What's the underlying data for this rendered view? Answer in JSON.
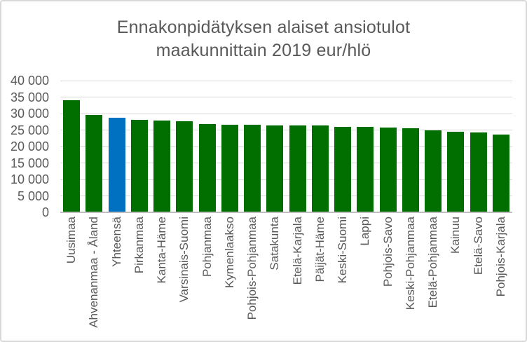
{
  "chart_data": {
    "type": "bar",
    "title": "Ennakonpidätyksen alaiset ansiotulot maakunnittain 2019 eur/hlö",
    "title_lines": [
      "Ennakonpidätyksen alaiset ansiotulot",
      "maakunnittain 2019 eur/hlö"
    ],
    "categories": [
      "Uusimaa",
      "Ahvenanmaa - Åland",
      "Yhteensä",
      "Pirkanmaa",
      "Kanta-Häme",
      "Varsinais-Suomi",
      "Pohjanmaa",
      "Kymenlaakso",
      "Pohjois-Pohjanmaa",
      "Satakunta",
      "Etelä-Karjala",
      "Päijät-Häme",
      "Keski-Suomi",
      "Lappi",
      "Pohjois-Savo",
      "Keski-Pohjanmaa",
      "Etelä-Pohjanmaa",
      "Kainuu",
      "Etelä-Savo",
      "Pohjois-Karjala"
    ],
    "values": [
      34100,
      29500,
      28800,
      28000,
      27800,
      27600,
      26900,
      26700,
      26600,
      26400,
      26300,
      26300,
      25900,
      25900,
      25800,
      25600,
      24800,
      24500,
      24200,
      23700
    ],
    "highlight_category": "Yhteensä",
    "ylim": [
      0,
      40000
    ],
    "ytick_step": 5000,
    "ytick_labels": [
      "0",
      "5 000",
      "10 000",
      "15 000",
      "20 000",
      "25 000",
      "30 000",
      "35 000",
      "40 000"
    ],
    "xlabel": "",
    "ylabel": "",
    "grid": true,
    "legend": "none",
    "x_label_rotation_degrees": 90,
    "colors": {
      "bar": "#006F00",
      "highlight": "#0070C0",
      "gridline": "#D9D9D9",
      "axis_line": "#BFBFBF",
      "text": "#595959",
      "border": "#D9D9D9",
      "background": "#FFFFFF"
    }
  }
}
